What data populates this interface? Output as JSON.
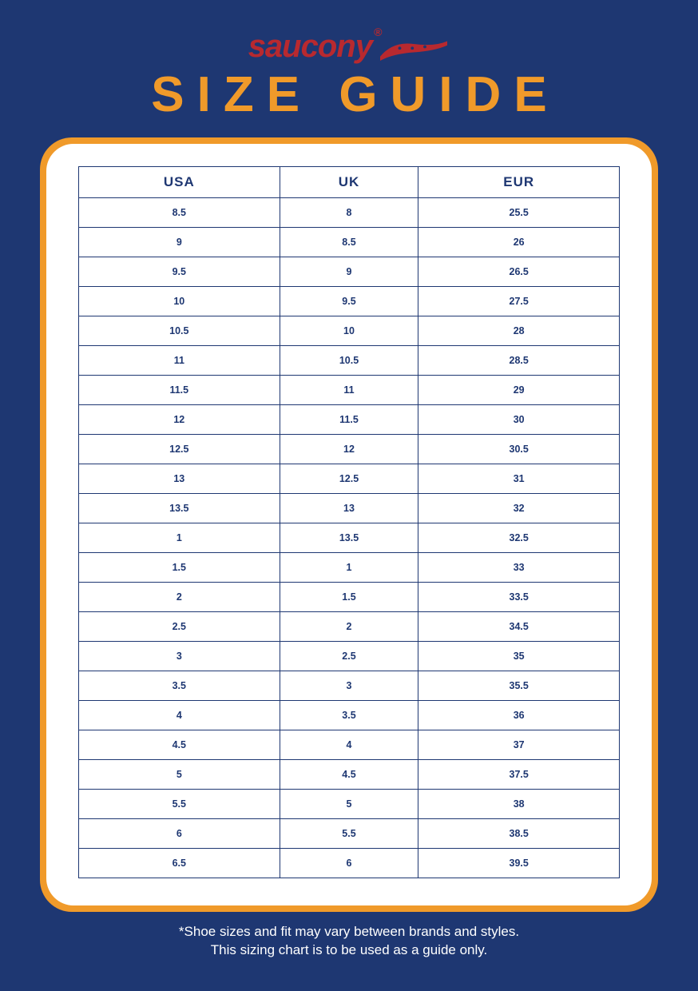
{
  "colors": {
    "page_bg": "#1e3772",
    "accent": "#f09a2a",
    "logo_red": "#b8292f",
    "card_bg": "#ffffff",
    "table_text": "#1e3772",
    "cell_border": "#1e3772",
    "footer_text": "#ffffff"
  },
  "logo": {
    "text": "saucony"
  },
  "title": "SIZE GUIDE",
  "table": {
    "columns": [
      "USA",
      "UK",
      "EUR"
    ],
    "rows": [
      [
        "8.5",
        "8",
        "25.5"
      ],
      [
        "9",
        "8.5",
        "26"
      ],
      [
        "9.5",
        "9",
        "26.5"
      ],
      [
        "10",
        "9.5",
        "27.5"
      ],
      [
        "10.5",
        "10",
        "28"
      ],
      [
        "11",
        "10.5",
        "28.5"
      ],
      [
        "11.5",
        "11",
        "29"
      ],
      [
        "12",
        "11.5",
        "30"
      ],
      [
        "12.5",
        "12",
        "30.5"
      ],
      [
        "13",
        "12.5",
        "31"
      ],
      [
        "13.5",
        "13",
        "32"
      ],
      [
        "1",
        "13.5",
        "32.5"
      ],
      [
        "1.5",
        "1",
        "33"
      ],
      [
        "2",
        "1.5",
        "33.5"
      ],
      [
        "2.5",
        "2",
        "34.5"
      ],
      [
        "3",
        "2.5",
        "35"
      ],
      [
        "3.5",
        "3",
        "35.5"
      ],
      [
        "4",
        "3.5",
        "36"
      ],
      [
        "4.5",
        "4",
        "37"
      ],
      [
        "5",
        "4.5",
        "37.5"
      ],
      [
        "5.5",
        "5",
        "38"
      ],
      [
        "6",
        "5.5",
        "38.5"
      ],
      [
        "6.5",
        "6",
        "39.5"
      ]
    ]
  },
  "footer": {
    "line1": "*Shoe sizes and fit may vary between brands and styles.",
    "line2": "This sizing chart is to be used as a guide only."
  }
}
